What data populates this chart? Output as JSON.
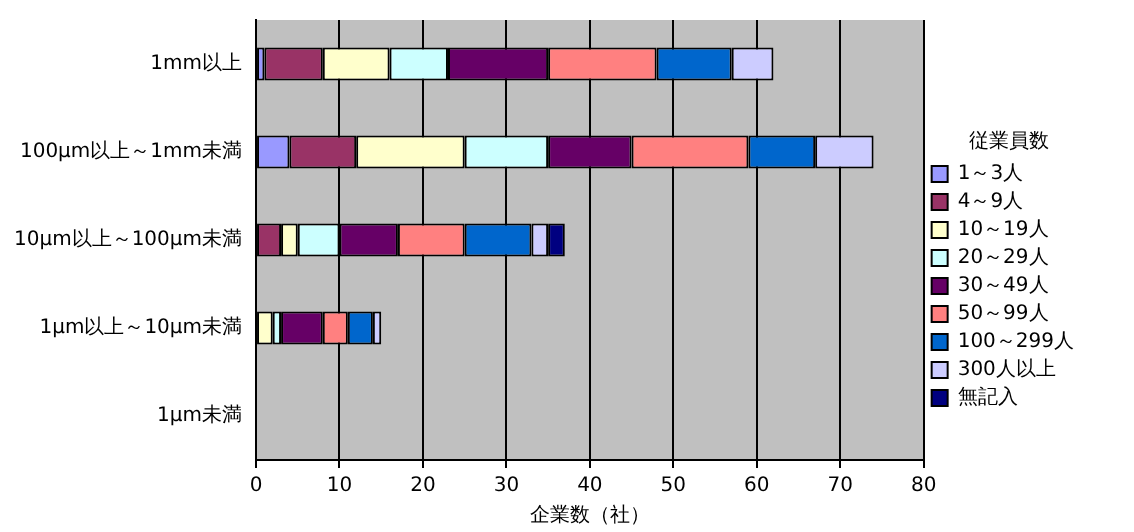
{
  "chart_data": {
    "type": "bar",
    "orientation": "horizontal",
    "stacked": true,
    "xlabel": "企業数（社）",
    "legend_title": "従業員数",
    "legend": "right",
    "grid": "x",
    "categories": [
      "1mm以上",
      "100μm以上～1mm未満",
      "10μm以上～100μm未満",
      "1μm以上～10μm未満",
      "1μm未満"
    ],
    "xlim": [
      0,
      80
    ],
    "xticks": [
      0,
      10,
      20,
      30,
      40,
      50,
      60,
      70,
      80
    ],
    "series": [
      {
        "name": "1～3人",
        "color": "#9999ff",
        "values": [
          1,
          4,
          0,
          0,
          0
        ]
      },
      {
        "name": "4～9人",
        "color": "#993366",
        "values": [
          7,
          8,
          3,
          0,
          0
        ]
      },
      {
        "name": "10～19人",
        "color": "#ffffcc",
        "values": [
          8,
          13,
          2,
          2,
          0
        ]
      },
      {
        "name": "20～29人",
        "color": "#ccffff",
        "values": [
          7,
          10,
          5,
          1,
          0
        ]
      },
      {
        "name": "30～49人",
        "color": "#660066",
        "values": [
          12,
          10,
          7,
          5,
          0
        ]
      },
      {
        "name": "50～99人",
        "color": "#ff8080",
        "values": [
          13,
          14,
          8,
          3,
          0
        ]
      },
      {
        "name": "100～299人",
        "color": "#0066cc",
        "values": [
          9,
          8,
          8,
          3,
          0
        ]
      },
      {
        "name": "300人以上",
        "color": "#ccccff",
        "values": [
          5,
          7,
          2,
          1,
          0
        ]
      },
      {
        "name": "無記入",
        "color": "#000080",
        "values": [
          0,
          0,
          2,
          0,
          0
        ]
      }
    ]
  }
}
